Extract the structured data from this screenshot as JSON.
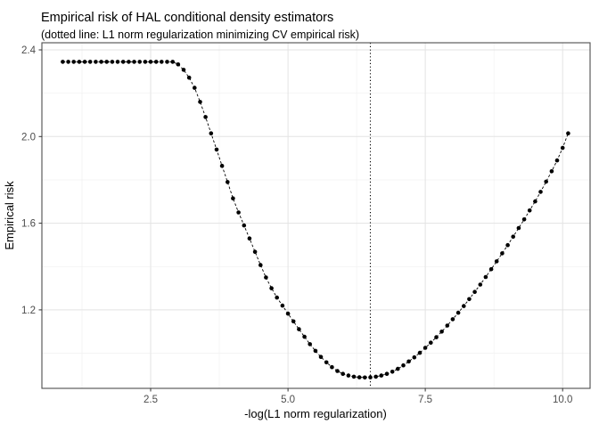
{
  "chart_data": {
    "type": "scatter",
    "title": "Empirical risk of HAL conditional density estimators",
    "subtitle": "(dotted line: L1 norm regularization minimizing CV empirical risk)",
    "xlabel": "-log(L1 norm regularization)",
    "ylabel": "Empirical risk",
    "legend_position": "none",
    "grid": true,
    "xlim": [
      0.52,
      10.5
    ],
    "ylim": [
      0.838,
      2.433
    ],
    "x_ticks": [
      2.5,
      5.0,
      7.5,
      10.0
    ],
    "x_tick_labels": [
      "2.5",
      "5.0",
      "7.5",
      "10.0"
    ],
    "y_ticks": [
      1.2,
      1.6,
      2.0,
      2.4
    ],
    "y_tick_labels": [
      "1.2",
      "1.6",
      "2.0",
      "2.4"
    ],
    "x_minor_gridlines": [
      1.25,
      3.75,
      6.25,
      8.75
    ],
    "y_minor_gridlines": [
      1.0,
      1.4,
      1.8,
      2.2
    ],
    "vline": {
      "x": 6.5,
      "linetype": "dotted",
      "color": "#000000"
    },
    "series": [
      {
        "name": "empirical-risk-vs-regularization",
        "marker": "point",
        "linetype": "dashed",
        "color": "#000000",
        "x": [
          0.9,
          1.0,
          1.1,
          1.2,
          1.3,
          1.4,
          1.5,
          1.6,
          1.7,
          1.8,
          1.9,
          2.0,
          2.1,
          2.2,
          2.3,
          2.4,
          2.5,
          2.6,
          2.7,
          2.8,
          2.9,
          3.0,
          3.1,
          3.2,
          3.3,
          3.4,
          3.5,
          3.6,
          3.7,
          3.8,
          3.9,
          4.0,
          4.1,
          4.2,
          4.3,
          4.4,
          4.5,
          4.6,
          4.7,
          4.8,
          4.9,
          5.0,
          5.1,
          5.2,
          5.3,
          5.4,
          5.5,
          5.6,
          5.7,
          5.8,
          5.9,
          6.0,
          6.1,
          6.2,
          6.3,
          6.4,
          6.5,
          6.6,
          6.7,
          6.8,
          6.9,
          7.0,
          7.1,
          7.2,
          7.3,
          7.4,
          7.5,
          7.6,
          7.7,
          7.8,
          7.9,
          8.0,
          8.1,
          8.2,
          8.3,
          8.4,
          8.5,
          8.6,
          8.7,
          8.8,
          8.9,
          9.0,
          9.1,
          9.2,
          9.3,
          9.4,
          9.5,
          9.6,
          9.7,
          9.8,
          9.9,
          10.0,
          10.1
        ],
        "y": [
          2.345,
          2.345,
          2.345,
          2.345,
          2.345,
          2.345,
          2.345,
          2.345,
          2.345,
          2.345,
          2.345,
          2.345,
          2.345,
          2.345,
          2.345,
          2.345,
          2.345,
          2.345,
          2.345,
          2.345,
          2.345,
          2.333,
          2.308,
          2.272,
          2.225,
          2.16,
          2.09,
          2.015,
          1.94,
          1.865,
          1.79,
          1.715,
          1.65,
          1.59,
          1.53,
          1.468,
          1.407,
          1.35,
          1.3,
          1.257,
          1.22,
          1.183,
          1.147,
          1.111,
          1.076,
          1.042,
          1.011,
          0.983,
          0.958,
          0.936,
          0.918,
          0.905,
          0.897,
          0.892,
          0.889,
          0.888,
          0.889,
          0.892,
          0.897,
          0.905,
          0.915,
          0.928,
          0.944,
          0.962,
          0.981,
          1.002,
          1.025,
          1.049,
          1.074,
          1.1,
          1.128,
          1.157,
          1.187,
          1.218,
          1.25,
          1.283,
          1.317,
          1.352,
          1.388,
          1.424,
          1.461,
          1.499,
          1.538,
          1.578,
          1.618,
          1.659,
          1.701,
          1.745,
          1.792,
          1.84,
          1.89,
          1.948,
          2.015
        ]
      }
    ]
  },
  "colors": {
    "background": "#ffffff",
    "panel_background": "#ffffff",
    "panel_border": "#4d4d4d",
    "grid_major": "#e3e3e3",
    "grid_minor": "#f1f1f1",
    "tick_mark": "#333333",
    "axis_text": "#4d4d4d",
    "title_text": "#000000",
    "point": "#000000",
    "line": "#000000"
  }
}
